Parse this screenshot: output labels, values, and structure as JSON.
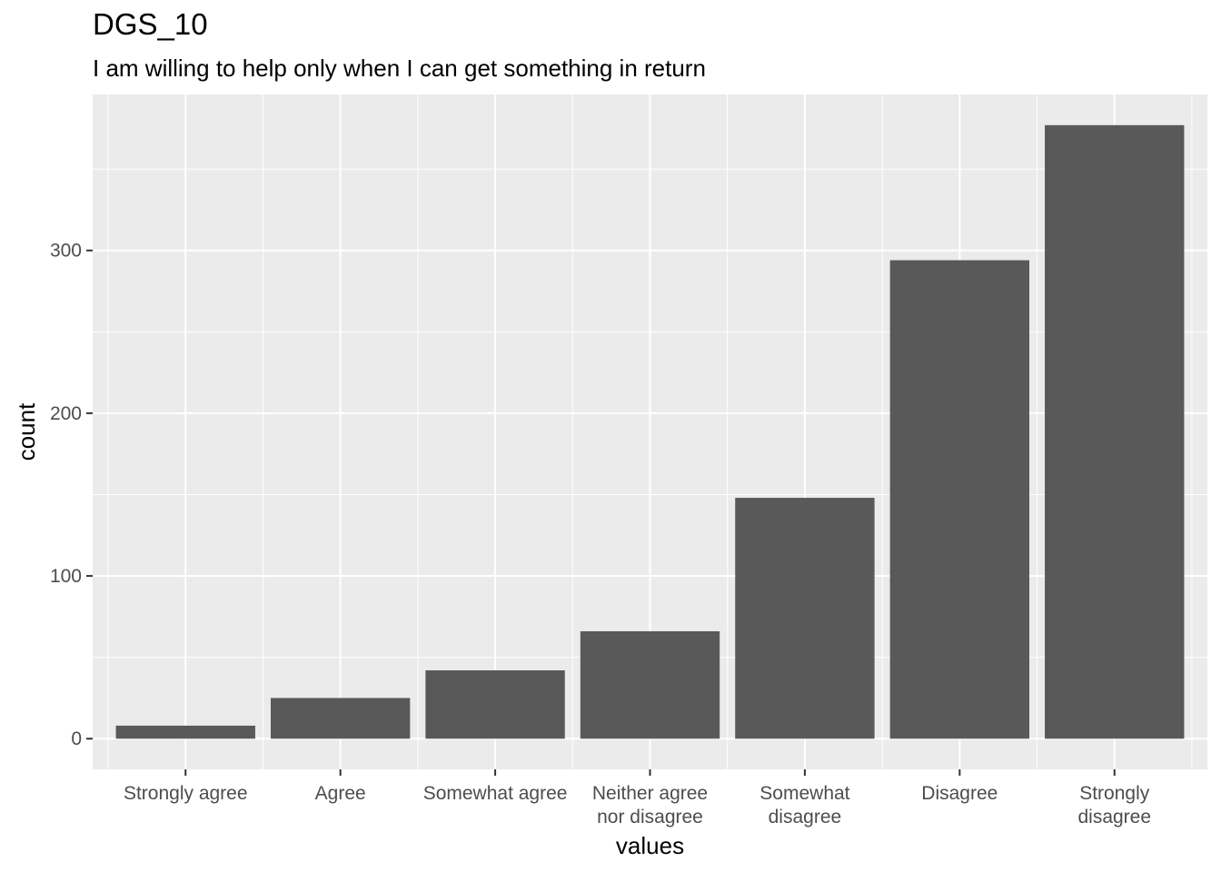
{
  "chart_data": {
    "type": "bar",
    "title": "DGS_10",
    "subtitle": "I am willing to help only when I can get something in return",
    "xlabel": "values",
    "ylabel": "count",
    "categories": [
      "Strongly agree",
      "Agree",
      "Somewhat agree",
      "Neither agree nor disagree",
      "Somewhat disagree",
      "Disagree",
      "Strongly disagree"
    ],
    "category_label_lines": [
      [
        "Strongly agree"
      ],
      [
        "Agree"
      ],
      [
        "Somewhat agree"
      ],
      [
        "Neither agree",
        "nor disagree"
      ],
      [
        "Somewhat",
        "disagree"
      ],
      [
        "Disagree"
      ],
      [
        "Strongly",
        "disagree"
      ]
    ],
    "values": [
      8,
      25,
      42,
      66,
      148,
      294,
      377
    ],
    "yticks": [
      0,
      100,
      200,
      300
    ],
    "ylim": [
      -18.85,
      395.85
    ],
    "grid": true,
    "legend": "none",
    "colors": {
      "bar": "#595959",
      "panel": "#ebebeb",
      "grid": "#ffffff",
      "tick_text": "#4d4d4d",
      "tick_mark": "#333333"
    }
  }
}
